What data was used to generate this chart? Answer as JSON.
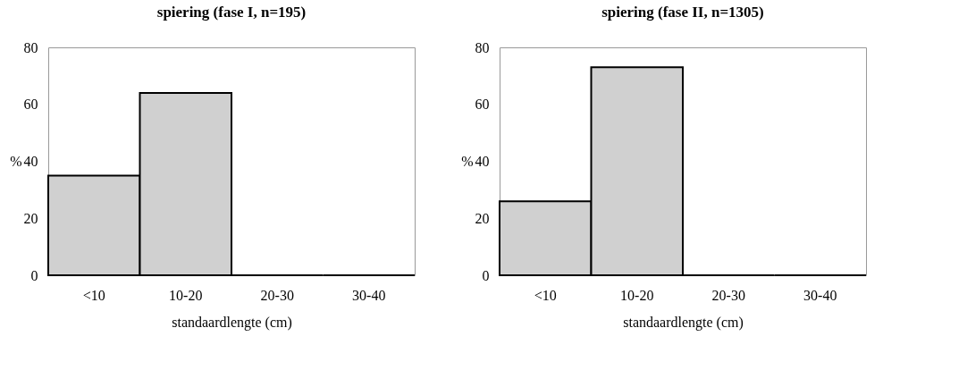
{
  "chart_data": [
    {
      "type": "bar",
      "title": "spiering (fase I, n=195)",
      "xlabel": "standaardlengte (cm)",
      "ylabel": "%",
      "categories": [
        "<10",
        "10-20",
        "20-30",
        "30-40"
      ],
      "series": [
        {
          "color": "#d0d0d0",
          "values": [
            35,
            64,
            0,
            0
          ]
        }
      ],
      "ylim": [
        0,
        80
      ],
      "yticks": [
        0,
        20,
        40,
        60,
        80
      ],
      "grid": false
    },
    {
      "type": "bar",
      "title": "spiering (fase II, n=1305)",
      "xlabel": "standaardlengte (cm)",
      "ylabel": "%",
      "categories": [
        "<10",
        "10-20",
        "20-30",
        "30-40"
      ],
      "series": [
        {
          "color": "#d0d0d0",
          "values": [
            26,
            73,
            0,
            0
          ]
        }
      ],
      "ylim": [
        0,
        80
      ],
      "yticks": [
        0,
        20,
        40,
        60,
        80
      ],
      "grid": false
    }
  ]
}
